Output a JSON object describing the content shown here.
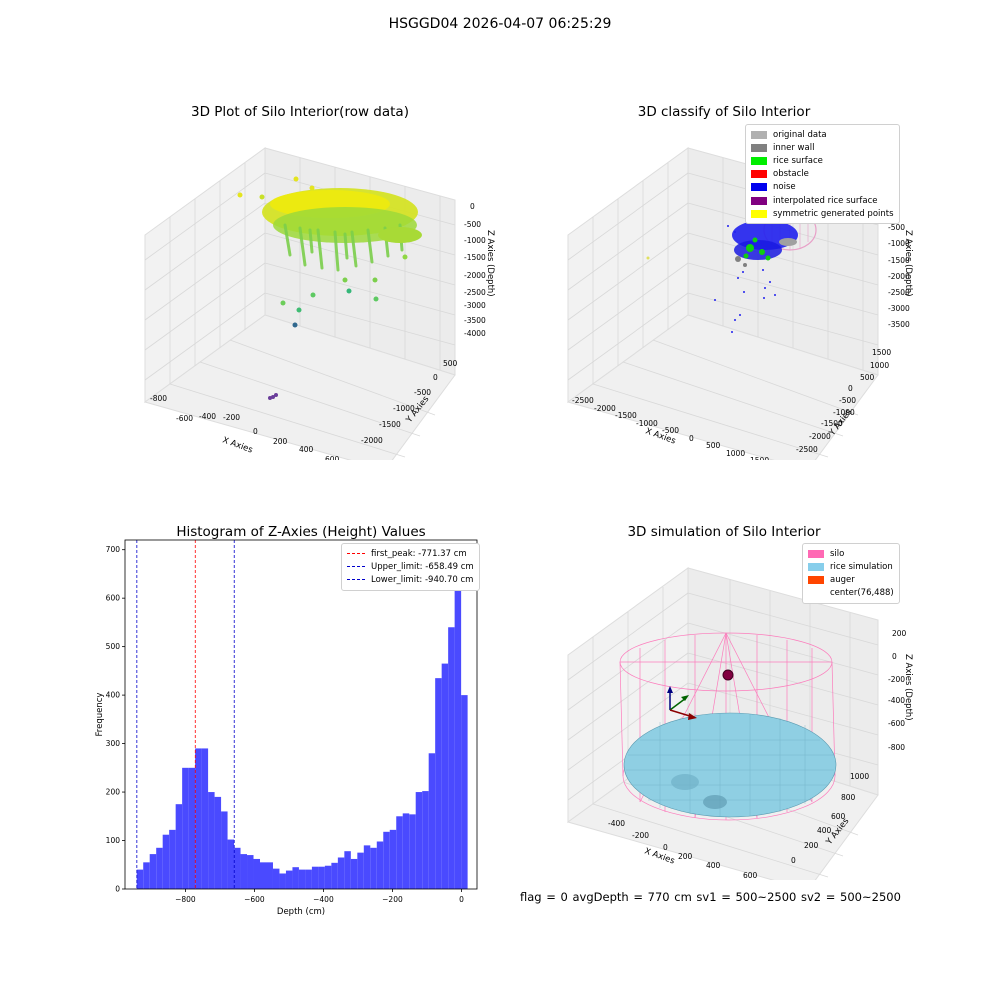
{
  "suptitle": "HSGGD04 2026-04-07 06:25:29",
  "status_line": "flag = 0     avgDepth = 770 cm  sv1 = 500~2500  sv2 = 500~2500",
  "chart_data": [
    {
      "type": "scatter",
      "title": "3D Plot of Silo Interior(row data)",
      "xlabel": "X Axies",
      "ylabel": "Y Axies",
      "zlabel": "Z Axies (Depth)",
      "xticks": [
        "-800",
        "-600",
        "-400",
        "-200",
        "0",
        "200",
        "400",
        "600"
      ],
      "yticks": [
        "500",
        "0",
        "-500",
        "-1000",
        "-1500",
        "-2000"
      ],
      "zticks": [
        "0",
        "-500",
        "-1000",
        "-1500",
        "-2000",
        "-2500",
        "-3000",
        "-3500",
        "-4000"
      ]
    },
    {
      "type": "scatter",
      "title": "3D classify of Silo Interior",
      "xlabel": "X Axies",
      "ylabel": "Y Axies",
      "zlabel": "Z Axies (Depth)",
      "xticks": [
        "-2500",
        "-2000",
        "-1500",
        "-1000",
        "-500",
        "0",
        "500",
        "1000",
        "1500"
      ],
      "yticks": [
        "1500",
        "1000",
        "500",
        "0",
        "-500",
        "-1000",
        "-1500",
        "-2000",
        "-2500"
      ],
      "zticks": [
        "0",
        "-500",
        "-1000",
        "-1500",
        "-2000",
        "-2500",
        "-3000",
        "-3500"
      ],
      "legend": [
        {
          "label": "original data",
          "color": "#b0b0b0"
        },
        {
          "label": "inner wall",
          "color": "#808080"
        },
        {
          "label": "rice surface",
          "color": "#00ee00"
        },
        {
          "label": "obstacle",
          "color": "#ff0000"
        },
        {
          "label": "noise",
          "color": "#0000ee"
        },
        {
          "label": "interpolated rice surface",
          "color": "#800080"
        },
        {
          "label": "symmetric generated points",
          "color": "#ffff00"
        }
      ]
    },
    {
      "type": "bar",
      "title": "Histogram of Z-Axies (Height) Values",
      "xlabel": "Depth (cm)",
      "ylabel": "Frequency",
      "xlim": [
        -975,
        45
      ],
      "ylim": [
        0,
        720
      ],
      "xticks": [
        -800,
        -600,
        -400,
        -200,
        0
      ],
      "yticks": [
        0,
        100,
        200,
        300,
        400,
        500,
        600,
        700
      ],
      "bar_color": "#4a4aff",
      "bin_start": -941,
      "bin_width": 18.8,
      "values": [
        40,
        55,
        72,
        85,
        112,
        122,
        175,
        250,
        250,
        290,
        290,
        200,
        190,
        160,
        102,
        85,
        72,
        70,
        62,
        55,
        55,
        42,
        32,
        38,
        45,
        40,
        40,
        46,
        46,
        48,
        54,
        65,
        78,
        62,
        75,
        90,
        85,
        98,
        118,
        122,
        150,
        156,
        154,
        200,
        202,
        280,
        435,
        465,
        540,
        680,
        400
      ],
      "vlines": [
        {
          "label": "first_peak: -771.37 cm",
          "x": -771.37,
          "color": "#ff0000"
        },
        {
          "label": "Upper_limit: -658.49 cm",
          "x": -658.49,
          "color": "#0000cc"
        },
        {
          "label": "Lower_limit: -940.70 cm",
          "x": -940.7,
          "color": "#0000cc"
        }
      ]
    },
    {
      "type": "surface",
      "title": "3D simulation of Silo Interior",
      "xlabel": "X Axies",
      "ylabel": "Y Axies",
      "zlabel": "Z Axies (Depth)",
      "xticks": [
        "-400",
        "-200",
        "0",
        "200",
        "400",
        "600"
      ],
      "yticks": [
        "1000",
        "800",
        "600",
        "400",
        "200",
        "0"
      ],
      "zticks": [
        "200",
        "0",
        "-200",
        "-400",
        "-600",
        "-800"
      ],
      "legend": [
        {
          "label": "silo",
          "color": "#ff69b4"
        },
        {
          "label": "rice simulation",
          "color": "#87ceeb"
        },
        {
          "label": "auger",
          "color": "#ff4500"
        },
        {
          "label": "center(76,488)",
          "color": ""
        }
      ]
    }
  ]
}
